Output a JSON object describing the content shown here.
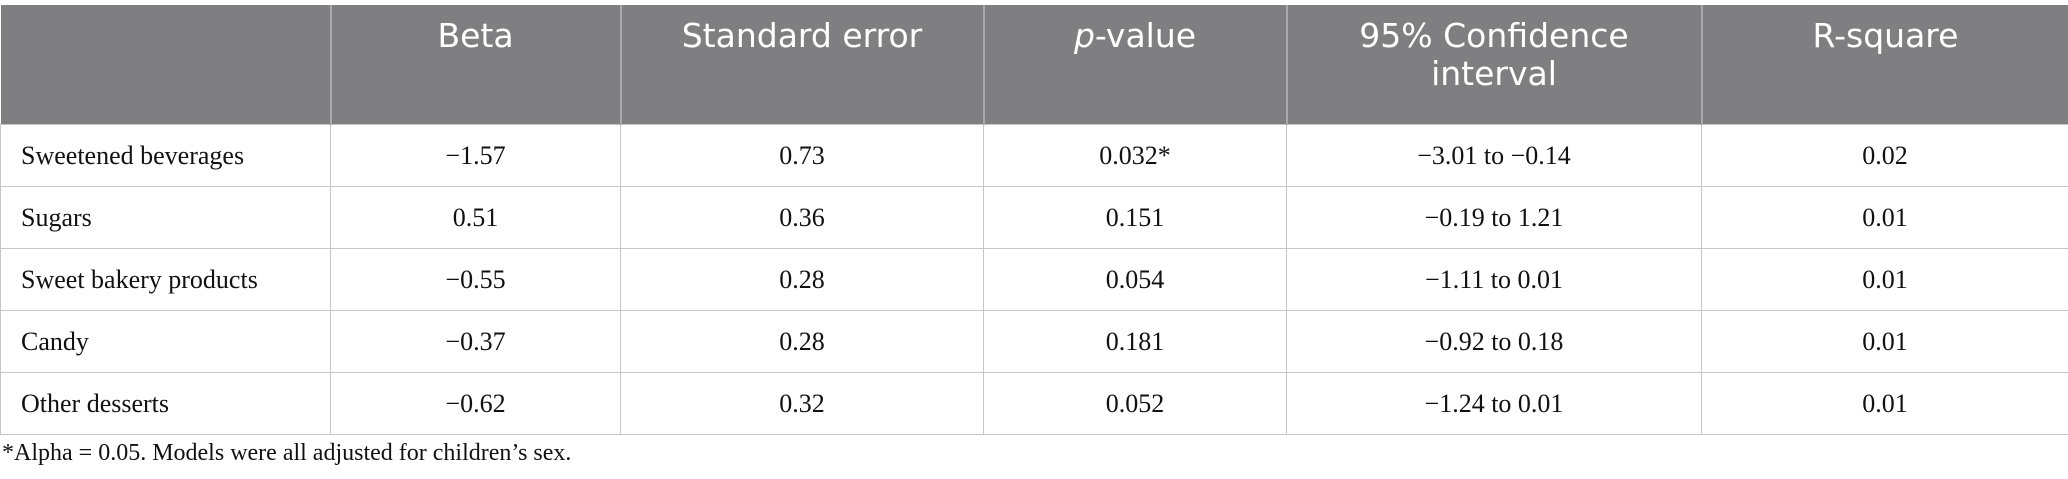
{
  "table": {
    "columns": [
      "Beta",
      "Standard error",
      {
        "italic": "p",
        "rest": "-value"
      },
      "95% Confidence interval",
      "R-square"
    ],
    "rows": [
      [
        "Sweetened beverages",
        "−1.57",
        "0.73",
        "0.032*",
        "−3.01 to −0.14",
        "0.02"
      ],
      [
        "Sugars",
        "0.51",
        "0.36",
        "0.151",
        "−0.19 to 1.21",
        "0.01"
      ],
      [
        "Sweet bakery products",
        "−0.55",
        "0.28",
        "0.054",
        "−1.11 to 0.01",
        "0.01"
      ],
      [
        "Candy",
        "−0.37",
        "0.28",
        "0.181",
        "−0.92 to 0.18",
        "0.01"
      ],
      [
        "Other desserts",
        "−0.62",
        "0.32",
        "0.052",
        "−1.24 to 0.01",
        "0.01"
      ]
    ]
  },
  "footnote": "*Alpha = 0.05. Models were all adjusted for children’s sex."
}
